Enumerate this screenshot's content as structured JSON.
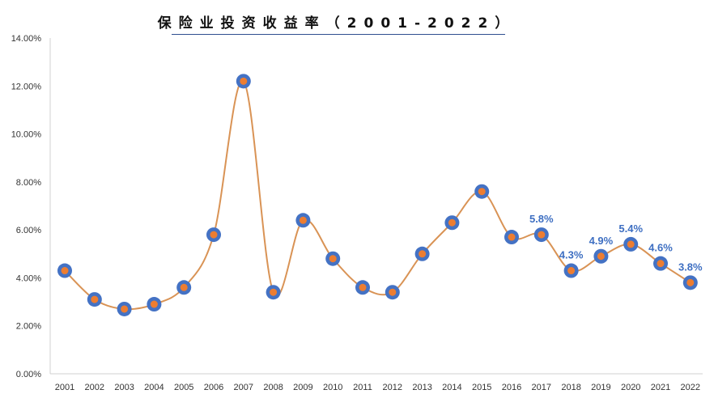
{
  "chart_data": {
    "type": "line",
    "title": "保险业投资收益率（2001-2022）",
    "categories": [
      "2001",
      "2002",
      "2003",
      "2004",
      "2005",
      "2006",
      "2007",
      "2008",
      "2009",
      "2010",
      "2011",
      "2012",
      "2013",
      "2014",
      "2015",
      "2016",
      "2017",
      "2018",
      "2019",
      "2020",
      "2021",
      "2022"
    ],
    "series": [
      {
        "values": [
          4.3,
          3.1,
          2.7,
          2.9,
          3.6,
          5.8,
          12.2,
          3.4,
          6.4,
          4.8,
          3.6,
          3.4,
          5.0,
          6.3,
          7.6,
          5.7,
          5.8,
          4.3,
          4.9,
          5.4,
          4.6,
          3.8
        ]
      }
    ],
    "data_labels": [
      {
        "index": 16,
        "text": "5.8%"
      },
      {
        "index": 17,
        "text": "4.3%"
      },
      {
        "index": 18,
        "text": "4.9%"
      },
      {
        "index": 19,
        "text": "5.4%"
      },
      {
        "index": 20,
        "text": "4.6%"
      },
      {
        "index": 21,
        "text": "3.8%"
      }
    ],
    "y_ticks": [
      "0.00%",
      "2.00%",
      "4.00%",
      "6.00%",
      "8.00%",
      "10.00%",
      "12.00%",
      "14.00%"
    ],
    "ylim": [
      0,
      14
    ],
    "grid": false,
    "line_color": "#d99355",
    "marker_outer_color": "#4472c4",
    "marker_inner_color": "#ed7d31",
    "label_color": "#3e6fc2"
  }
}
